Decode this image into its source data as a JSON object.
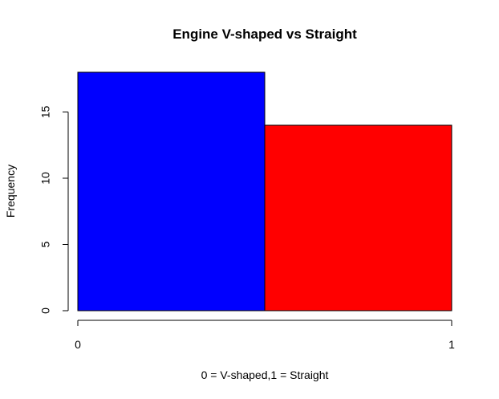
{
  "chart_data": {
    "type": "bar",
    "title": "Engine V-shaped vs Straight",
    "xlabel": "0 = V-shaped,1 = Straight",
    "ylabel": "Frequency",
    "bins": [
      {
        "from": 0.0,
        "to": 0.5,
        "value": 18,
        "color": "#0000ff"
      },
      {
        "from": 0.5,
        "to": 1.0,
        "value": 14,
        "color": "#ff0000"
      }
    ],
    "xlim": [
      0,
      1
    ],
    "ylim": [
      0,
      18
    ],
    "x_ticks": [
      "0",
      "1"
    ],
    "y_ticks": [
      "0",
      "5",
      "10",
      "15"
    ],
    "grid": false,
    "legend": "none"
  }
}
